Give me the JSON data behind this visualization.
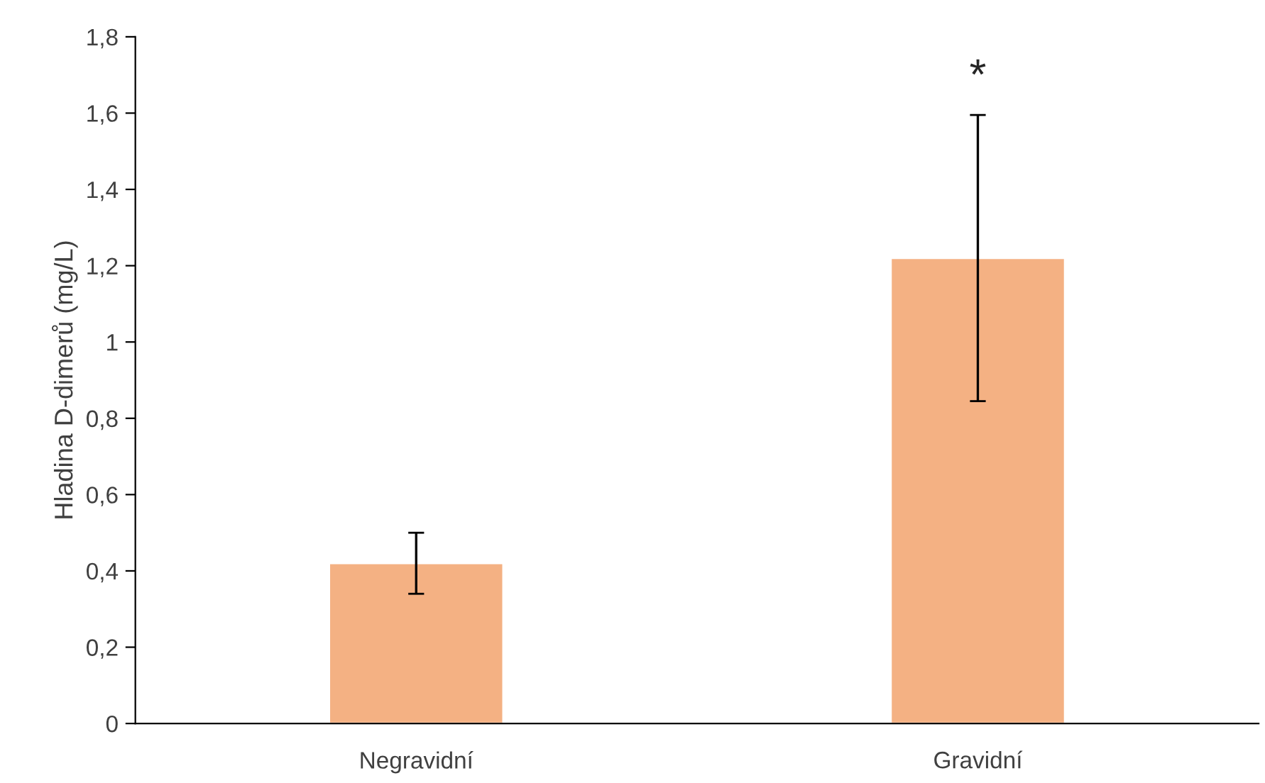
{
  "chart_data": {
    "type": "bar",
    "ylabel": "Hladina D-dimerů (mg/L)",
    "categories": [
      "Negravidní",
      "Gravidní"
    ],
    "series": [
      {
        "color": "#f4b183",
        "values": [
          0.42,
          1.22
        ],
        "errors": [
          0.08,
          0.375
        ]
      }
    ],
    "ylim": [
      0,
      1.8
    ],
    "yticks": [
      0,
      {
        "value": 0.2,
        "label": "0,2"
      },
      {
        "value": 0.4,
        "label": "0,4"
      },
      {
        "value": 0.6,
        "label": "0,6"
      },
      {
        "value": 0.8,
        "label": "0,8"
      },
      1,
      {
        "value": 1.2,
        "label": "1,2"
      },
      {
        "value": 1.4,
        "label": "1,4"
      },
      {
        "value": 1.6,
        "label": "1,6"
      },
      {
        "value": 1.8,
        "label": "1,8"
      }
    ],
    "annotations": [
      "*"
    ],
    "grid": false,
    "legend": false
  }
}
